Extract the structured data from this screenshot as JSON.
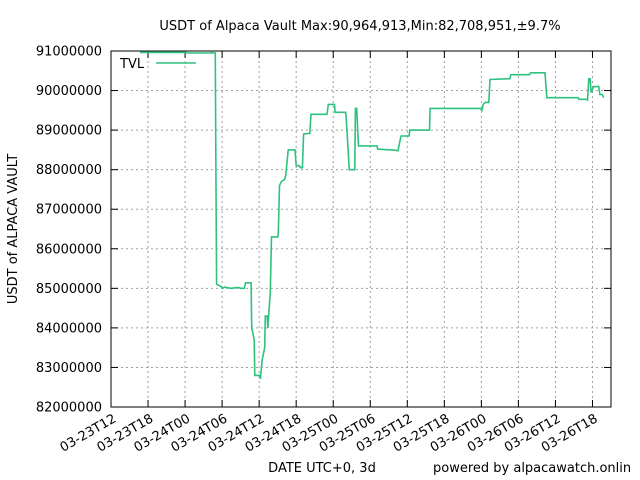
{
  "chart_data": {
    "type": "line",
    "title": "USDT of Alpaca Vault Max:90,964,913,Min:82,708,951,±9.7%",
    "xlabel": "DATE UTC+0, 3d",
    "ylabel": "USDT of ALPACA VAULT",
    "footer": "powered by alpacawatch.onlin",
    "legend_position": "top-left",
    "grid": true,
    "x_unit": "hours after 03-23T12 (UTC+0)",
    "xlim": [
      0,
      81
    ],
    "ylim": [
      82000000,
      91000000
    ],
    "x_ticks": [
      {
        "x": 0,
        "label": "03-23T12"
      },
      {
        "x": 6,
        "label": "03-23T18"
      },
      {
        "x": 12,
        "label": "03-24T00"
      },
      {
        "x": 18,
        "label": "03-24T06"
      },
      {
        "x": 24,
        "label": "03-24T12"
      },
      {
        "x": 30,
        "label": "03-24T18"
      },
      {
        "x": 36,
        "label": "03-25T00"
      },
      {
        "x": 42,
        "label": "03-25T06"
      },
      {
        "x": 48,
        "label": "03-25T12"
      },
      {
        "x": 54,
        "label": "03-25T18"
      },
      {
        "x": 60,
        "label": "03-26T00"
      },
      {
        "x": 66,
        "label": "03-26T06"
      },
      {
        "x": 72,
        "label": "03-26T12"
      },
      {
        "x": 78,
        "label": "03-26T18"
      }
    ],
    "y_ticks": [
      {
        "y": 82000000,
        "label": "82000000"
      },
      {
        "y": 83000000,
        "label": "83000000"
      },
      {
        "y": 84000000,
        "label": "84000000"
      },
      {
        "y": 85000000,
        "label": "85000000"
      },
      {
        "y": 86000000,
        "label": "86000000"
      },
      {
        "y": 87000000,
        "label": "87000000"
      },
      {
        "y": 88000000,
        "label": "88000000"
      },
      {
        "y": 89000000,
        "label": "89000000"
      },
      {
        "y": 90000000,
        "label": "90000000"
      },
      {
        "y": 91000000,
        "label": "91000000"
      }
    ],
    "series": [
      {
        "name": "TVL",
        "color": "#2ec27e",
        "points": [
          [
            4.7,
            90964913
          ],
          [
            12.1,
            90964913
          ],
          [
            12.1,
            90950000
          ],
          [
            16.3,
            90950000
          ],
          [
            16.3,
            90960000
          ],
          [
            16.9,
            90950000
          ],
          [
            17.0,
            88000000
          ],
          [
            17.1,
            85100000
          ],
          [
            17.8,
            85050000
          ],
          [
            18.1,
            85000000
          ],
          [
            18.4,
            85030000
          ],
          [
            19.4,
            85000000
          ],
          [
            20.6,
            85020000
          ],
          [
            21.0,
            85000000
          ],
          [
            21.6,
            85000000
          ],
          [
            21.8,
            85140000
          ],
          [
            22.7,
            85140000
          ],
          [
            22.8,
            84000000
          ],
          [
            23.2,
            83700000
          ],
          [
            23.3,
            82800000
          ],
          [
            24.1,
            82800000
          ],
          [
            24.2,
            82708951
          ],
          [
            24.5,
            83200000
          ],
          [
            24.9,
            83500000
          ],
          [
            25.0,
            84300000
          ],
          [
            25.3,
            84300000
          ],
          [
            25.4,
            84000000
          ],
          [
            25.8,
            84900000
          ],
          [
            26.0,
            86300000
          ],
          [
            27.0,
            86300000
          ],
          [
            27.1,
            86400000
          ],
          [
            27.3,
            87600000
          ],
          [
            27.6,
            87700000
          ],
          [
            28.1,
            87750000
          ],
          [
            28.3,
            87850000
          ],
          [
            28.7,
            88500000
          ],
          [
            29.8,
            88500000
          ],
          [
            30.0,
            88100000
          ],
          [
            30.5,
            88100000
          ],
          [
            30.7,
            88050000
          ],
          [
            31.0,
            88050000
          ],
          [
            31.2,
            88900000
          ],
          [
            32.2,
            88920000
          ],
          [
            32.4,
            89400000
          ],
          [
            35.0,
            89400000
          ],
          [
            35.2,
            89650000
          ],
          [
            36.2,
            89650000
          ],
          [
            36.3,
            89450000
          ],
          [
            38.0,
            89450000
          ],
          [
            38.1,
            89300000
          ],
          [
            38.6,
            88000000
          ],
          [
            39.5,
            88000000
          ],
          [
            39.6,
            89550000
          ],
          [
            39.8,
            89550000
          ],
          [
            40.0,
            88900000
          ],
          [
            40.1,
            88600000
          ],
          [
            43.1,
            88600000
          ],
          [
            43.2,
            88520000
          ],
          [
            45.4,
            88500000
          ],
          [
            45.6,
            88500000
          ],
          [
            46.5,
            88480000
          ],
          [
            46.8,
            88720000
          ],
          [
            47.0,
            88850000
          ],
          [
            48.3,
            88850000
          ],
          [
            48.4,
            89000000
          ],
          [
            51.6,
            89000000
          ],
          [
            51.7,
            89550000
          ],
          [
            59.8,
            89550000
          ],
          [
            60.1,
            89500000
          ],
          [
            60.3,
            89650000
          ],
          [
            60.6,
            89700000
          ],
          [
            61.2,
            89700000
          ],
          [
            61.4,
            90280000
          ],
          [
            64.6,
            90300000
          ],
          [
            64.8,
            90400000
          ],
          [
            67.8,
            90400000
          ],
          [
            68.0,
            90450000
          ],
          [
            70.3,
            90450000
          ],
          [
            70.6,
            89820000
          ],
          [
            75.7,
            89820000
          ],
          [
            75.8,
            89780000
          ],
          [
            77.0,
            89780000
          ],
          [
            77.2,
            89760000
          ],
          [
            77.4,
            90300000
          ],
          [
            77.6,
            90300000
          ],
          [
            77.8,
            89950000
          ],
          [
            78.2,
            90100000
          ],
          [
            79.0,
            90100000
          ],
          [
            79.2,
            89900000
          ],
          [
            79.6,
            89900000
          ],
          [
            79.8,
            89820000
          ]
        ]
      }
    ]
  }
}
